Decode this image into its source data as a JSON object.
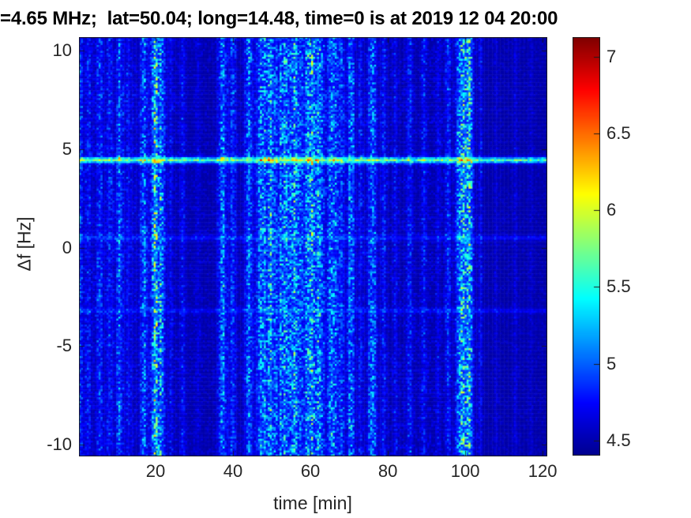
{
  "chart_data": {
    "type": "heatmap",
    "title": "=4.65 MHz;  lat=50.04; long=14.48, time=0 is at 2019 12 04 20:00",
    "xlabel": "time [min]",
    "ylabel": "Δf [Hz]",
    "xlim": [
      0.2,
      121.2
    ],
    "ylim": [
      -10.6,
      10.7
    ],
    "xticks": [
      20,
      40,
      60,
      80,
      100,
      120
    ],
    "yticks": [
      10,
      5,
      0,
      -5,
      -10
    ],
    "grid": false,
    "legend": "none",
    "colorbar": {
      "position": "right",
      "vmin": 4.4,
      "vmax": 7.13,
      "ticks": [
        4.5,
        5,
        5.5,
        6,
        6.5,
        7
      ],
      "colormap": "jet",
      "stops": [
        "#00008F",
        "#0000FF",
        "#00FFFF",
        "#FFFF00",
        "#FF0000",
        "#7F0000"
      ],
      "fracs": [
        0,
        0.125,
        0.375,
        0.625,
        0.875,
        1
      ]
    },
    "colors": {
      "axis_text": "#262626",
      "title_text": "#000000",
      "figure_background": "#FFFFFF",
      "plot_background_blue": "#0000A5",
      "box_line": "#1a1a1a"
    },
    "content": {
      "description": "Doppler spectrogram: dark-blue noise field with brighter vertical interference stripes and a persistent horizontal trace near +4.5 Hz",
      "background_value": 4.5,
      "noise": {
        "base": 0.025,
        "speckle": 0.085,
        "seed": 42
      },
      "horizontal_lines": [
        {
          "df_hz": 4.45,
          "width_hz": 0.1,
          "amplitude": 0.5
        },
        {
          "df_hz": 0.5,
          "width_hz": 0.09,
          "amplitude": 0.1
        },
        {
          "df_hz": -3.2,
          "width_hz": 0.09,
          "amplitude": 0.09
        }
      ],
      "vertical_stripes": [
        [
          0.6,
          0.4,
          0.3
        ],
        [
          2.6,
          0.5,
          0.22
        ],
        [
          5.5,
          0.5,
          0.28
        ],
        [
          8,
          0.6,
          0.18
        ],
        [
          10.7,
          0.6,
          0.32
        ],
        [
          13,
          0.5,
          0.18
        ],
        [
          17,
          0.6,
          0.33
        ],
        [
          19.8,
          0.7,
          0.72
        ],
        [
          21.6,
          0.6,
          0.48
        ],
        [
          24,
          0.4,
          0.15
        ],
        [
          27,
          0.5,
          0.18
        ],
        [
          31,
          0.5,
          0.12
        ],
        [
          37.3,
          0.8,
          0.42
        ],
        [
          40,
          0.6,
          0.28
        ],
        [
          44,
          0.7,
          0.38
        ],
        [
          47.5,
          0.9,
          0.52
        ],
        [
          50,
          0.8,
          0.42
        ],
        [
          53,
          1.0,
          0.38
        ],
        [
          56,
          1.2,
          0.42
        ],
        [
          59.8,
          0.8,
          0.48
        ],
        [
          62,
          1.0,
          0.38
        ],
        [
          65.7,
          0.8,
          0.52
        ],
        [
          68,
          0.6,
          0.32
        ],
        [
          70.5,
          0.7,
          0.38
        ],
        [
          73,
          0.5,
          0.22
        ],
        [
          76,
          0.8,
          0.42
        ],
        [
          79,
          0.5,
          0.22
        ],
        [
          82,
          0.5,
          0.16
        ],
        [
          85.6,
          0.6,
          0.26
        ],
        [
          89.4,
          0.5,
          0.22
        ],
        [
          93,
          0.4,
          0.16
        ],
        [
          95.5,
          0.5,
          0.26
        ],
        [
          99.2,
          0.9,
          0.8
        ],
        [
          101.2,
          0.6,
          0.5
        ],
        [
          104,
          0.4,
          0.16
        ],
        [
          108,
          0.4,
          0.1
        ],
        [
          113,
          0.4,
          0.1
        ],
        [
          117,
          0.4,
          0.08
        ],
        [
          57,
          6,
          0.14
        ],
        [
          12,
          8,
          0.06
        ]
      ]
    }
  }
}
